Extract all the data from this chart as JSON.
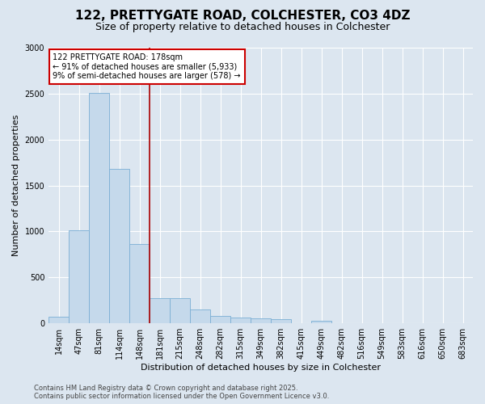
{
  "title_line1": "122, PRETTYGATE ROAD, COLCHESTER, CO3 4DZ",
  "title_line2": "Size of property relative to detached houses in Colchester",
  "xlabel": "Distribution of detached houses by size in Colchester",
  "ylabel": "Number of detached properties",
  "categories": [
    "14sqm",
    "47sqm",
    "81sqm",
    "114sqm",
    "148sqm",
    "181sqm",
    "215sqm",
    "248sqm",
    "282sqm",
    "315sqm",
    "349sqm",
    "382sqm",
    "415sqm",
    "449sqm",
    "482sqm",
    "516sqm",
    "549sqm",
    "583sqm",
    "616sqm",
    "650sqm",
    "683sqm"
  ],
  "values": [
    75,
    1010,
    2510,
    1680,
    860,
    270,
    270,
    155,
    80,
    60,
    55,
    45,
    0,
    25,
    0,
    0,
    0,
    0,
    0,
    0,
    0
  ],
  "bar_color": "#c5d9eb",
  "bar_edgecolor": "#7bafd4",
  "vline_color": "#aa0000",
  "vline_x_idx": 4.5,
  "annotation_text": "122 PRETTYGATE ROAD: 178sqm\n← 91% of detached houses are smaller (5,933)\n9% of semi-detached houses are larger (578) →",
  "annotation_box_facecolor": "#ffffff",
  "annotation_box_edgecolor": "#cc0000",
  "ylim": [
    0,
    3000
  ],
  "yticks": [
    0,
    500,
    1000,
    1500,
    2000,
    2500,
    3000
  ],
  "background_color": "#dce6f0",
  "plot_facecolor": "#dce6f0",
  "footer_text": "Contains HM Land Registry data © Crown copyright and database right 2025.\nContains public sector information licensed under the Open Government Licence v3.0.",
  "title_fontsize": 11,
  "subtitle_fontsize": 9,
  "tick_fontsize": 7,
  "ylabel_fontsize": 8,
  "xlabel_fontsize": 8,
  "annotation_fontsize": 7,
  "footer_fontsize": 6
}
